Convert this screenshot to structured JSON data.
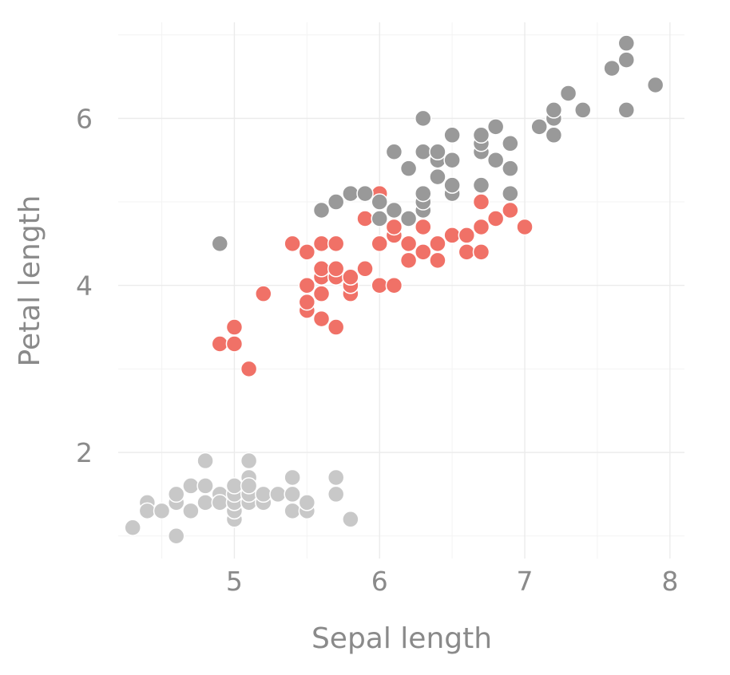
{
  "chart_data": {
    "type": "scatter",
    "title": "",
    "xlabel": "Sepal length",
    "ylabel": "Petal length",
    "xlim": [
      4.2,
      8.1
    ],
    "ylim": [
      0.73,
      7.15
    ],
    "x_ticks": [
      5,
      6,
      7,
      8
    ],
    "x_tick_labels": [
      "5",
      "6",
      "7",
      "8"
    ],
    "y_ticks": [
      2,
      4,
      6
    ],
    "y_tick_labels": [
      "2",
      "4",
      "6"
    ],
    "x_minor_ticks": [
      4.5,
      5.5,
      6.5,
      7.5
    ],
    "y_minor_ticks": [
      1,
      3,
      5,
      7
    ],
    "grid": true,
    "legend": "none",
    "series": [
      {
        "color": "#c8c8c8",
        "points": [
          [
            4.3,
            1.1
          ],
          [
            4.4,
            1.4
          ],
          [
            4.4,
            1.3
          ],
          [
            4.5,
            1.3
          ],
          [
            4.6,
            1.0
          ],
          [
            4.6,
            1.4
          ],
          [
            4.6,
            1.5
          ],
          [
            4.7,
            1.3
          ],
          [
            4.7,
            1.6
          ],
          [
            4.8,
            1.9
          ],
          [
            4.8,
            1.6
          ],
          [
            4.8,
            1.4
          ],
          [
            4.9,
            1.5
          ],
          [
            4.9,
            1.4
          ],
          [
            5.0,
            1.2
          ],
          [
            5.0,
            1.3
          ],
          [
            5.0,
            1.4
          ],
          [
            5.0,
            1.5
          ],
          [
            5.0,
            1.6
          ],
          [
            5.1,
            1.4
          ],
          [
            5.1,
            1.5
          ],
          [
            5.1,
            1.7
          ],
          [
            5.1,
            1.9
          ],
          [
            5.1,
            1.6
          ],
          [
            5.2,
            1.4
          ],
          [
            5.2,
            1.5
          ],
          [
            5.3,
            1.5
          ],
          [
            5.4,
            1.3
          ],
          [
            5.4,
            1.5
          ],
          [
            5.4,
            1.7
          ],
          [
            5.5,
            1.3
          ],
          [
            5.5,
            1.4
          ],
          [
            5.7,
            1.5
          ],
          [
            5.7,
            1.7
          ],
          [
            5.8,
            1.2
          ]
        ]
      },
      {
        "color": "#f07167",
        "points": [
          [
            4.9,
            3.3
          ],
          [
            5.0,
            3.3
          ],
          [
            5.0,
            3.5
          ],
          [
            5.1,
            3.0
          ],
          [
            5.2,
            3.9
          ],
          [
            5.4,
            4.5
          ],
          [
            5.5,
            3.7
          ],
          [
            5.5,
            3.8
          ],
          [
            5.5,
            4.0
          ],
          [
            5.5,
            4.4
          ],
          [
            5.6,
            3.6
          ],
          [
            5.6,
            3.9
          ],
          [
            5.6,
            4.1
          ],
          [
            5.6,
            4.2
          ],
          [
            5.6,
            4.5
          ],
          [
            5.7,
            3.5
          ],
          [
            5.7,
            4.1
          ],
          [
            5.7,
            4.2
          ],
          [
            5.7,
            4.5
          ],
          [
            5.8,
            3.9
          ],
          [
            5.8,
            4.0
          ],
          [
            5.8,
            4.1
          ],
          [
            5.9,
            4.2
          ],
          [
            5.9,
            4.8
          ],
          [
            6.0,
            4.0
          ],
          [
            6.0,
            4.5
          ],
          [
            6.0,
            5.1
          ],
          [
            6.1,
            4.0
          ],
          [
            6.1,
            4.6
          ],
          [
            6.1,
            4.7
          ],
          [
            6.2,
            4.3
          ],
          [
            6.2,
            4.5
          ],
          [
            6.3,
            4.4
          ],
          [
            6.3,
            4.7
          ],
          [
            6.3,
            4.9
          ],
          [
            6.4,
            4.3
          ],
          [
            6.4,
            4.5
          ],
          [
            6.5,
            4.6
          ],
          [
            6.6,
            4.4
          ],
          [
            6.6,
            4.6
          ],
          [
            6.7,
            4.4
          ],
          [
            6.7,
            4.7
          ],
          [
            6.7,
            5.0
          ],
          [
            6.8,
            4.8
          ],
          [
            6.9,
            4.9
          ],
          [
            7.0,
            4.7
          ]
        ]
      },
      {
        "color": "#999999",
        "points": [
          [
            4.9,
            4.5
          ],
          [
            5.6,
            4.9
          ],
          [
            5.7,
            5.0
          ],
          [
            5.8,
            5.1
          ],
          [
            5.9,
            5.1
          ],
          [
            6.0,
            4.8
          ],
          [
            6.0,
            5.0
          ],
          [
            6.1,
            4.9
          ],
          [
            6.1,
            5.6
          ],
          [
            6.2,
            4.8
          ],
          [
            6.2,
            5.4
          ],
          [
            6.3,
            4.9
          ],
          [
            6.3,
            5.0
          ],
          [
            6.3,
            5.1
          ],
          [
            6.3,
            5.6
          ],
          [
            6.3,
            6.0
          ],
          [
            6.4,
            5.3
          ],
          [
            6.4,
            5.5
          ],
          [
            6.4,
            5.6
          ],
          [
            6.5,
            5.1
          ],
          [
            6.5,
            5.2
          ],
          [
            6.5,
            5.5
          ],
          [
            6.5,
            5.8
          ],
          [
            6.7,
            5.2
          ],
          [
            6.7,
            5.6
          ],
          [
            6.7,
            5.7
          ],
          [
            6.7,
            5.8
          ],
          [
            6.8,
            5.5
          ],
          [
            6.8,
            5.9
          ],
          [
            6.9,
            5.1
          ],
          [
            6.9,
            5.4
          ],
          [
            6.9,
            5.7
          ],
          [
            7.1,
            5.9
          ],
          [
            7.2,
            5.8
          ],
          [
            7.2,
            6.0
          ],
          [
            7.2,
            6.1
          ],
          [
            7.3,
            6.3
          ],
          [
            7.4,
            6.1
          ],
          [
            7.6,
            6.6
          ],
          [
            7.7,
            6.1
          ],
          [
            7.7,
            6.7
          ],
          [
            7.7,
            6.9
          ],
          [
            7.9,
            6.4
          ]
        ]
      }
    ]
  }
}
